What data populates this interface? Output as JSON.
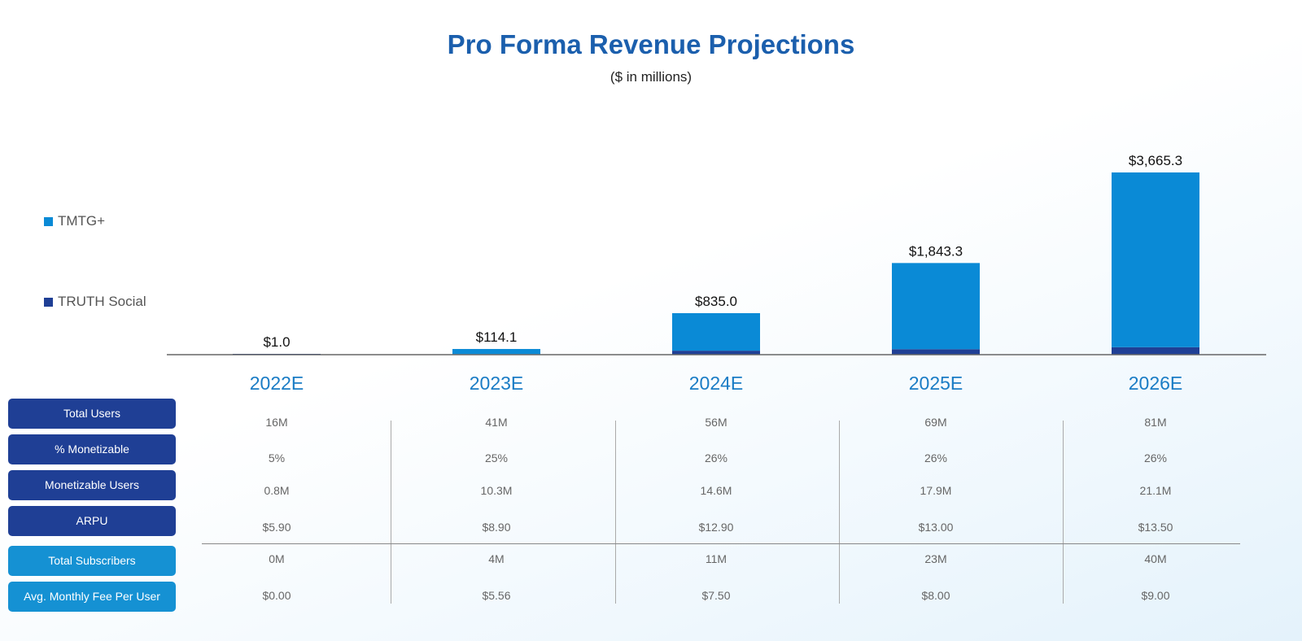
{
  "chart_data": {
    "type": "bar",
    "stacked": true,
    "title": "Pro Forma Revenue Projections",
    "subtitle": "($ in millions)",
    "categories": [
      "2022E",
      "2023E",
      "2024E",
      "2025E",
      "2026E"
    ],
    "series": [
      {
        "name": "TRUTH Social",
        "color": "#1f3f95",
        "values": [
          1.0,
          10.0,
          80.0,
          110.0,
          150.0
        ]
      },
      {
        "name": "TMTG+",
        "color": "#0a8ad6",
        "values": [
          0.0,
          104.1,
          755.0,
          1733.3,
          3515.3
        ]
      }
    ],
    "totals": [
      1.0,
      114.1,
      835.0,
      1843.3,
      3665.3
    ],
    "total_labels": [
      "$1.0",
      "$114.1",
      "$835.0",
      "$1,843.3",
      "$3,665.3"
    ],
    "ylim": [
      0,
      4000
    ],
    "grid": false,
    "legend_position": "left"
  },
  "legend": [
    {
      "label": "TMTG+",
      "color": "#0a8ad6"
    },
    {
      "label": "TRUTH Social",
      "color": "#1f3f95"
    }
  ],
  "table": {
    "rows": [
      {
        "label": "Total Users",
        "style": "dark",
        "values": [
          "16M",
          "41M",
          "56M",
          "69M",
          "81M"
        ]
      },
      {
        "label": "% Monetizable",
        "style": "dark",
        "values": [
          "5%",
          "25%",
          "26%",
          "26%",
          "26%"
        ]
      },
      {
        "label": "Monetizable Users",
        "style": "dark",
        "values": [
          "0.8M",
          "10.3M",
          "14.6M",
          "17.9M",
          "21.1M"
        ]
      },
      {
        "label": "ARPU",
        "style": "dark",
        "values": [
          "$5.90",
          "$8.90",
          "$12.90",
          "$13.00",
          "$13.50"
        ]
      },
      {
        "label": "Total Subscribers",
        "style": "light",
        "values": [
          "0M",
          "4M",
          "11M",
          "23M",
          "40M"
        ]
      },
      {
        "label": "Avg. Monthly Fee Per User",
        "style": "light",
        "values": [
          "$0.00",
          "$5.56",
          "$7.50",
          "$8.00",
          "$9.00"
        ]
      }
    ]
  }
}
